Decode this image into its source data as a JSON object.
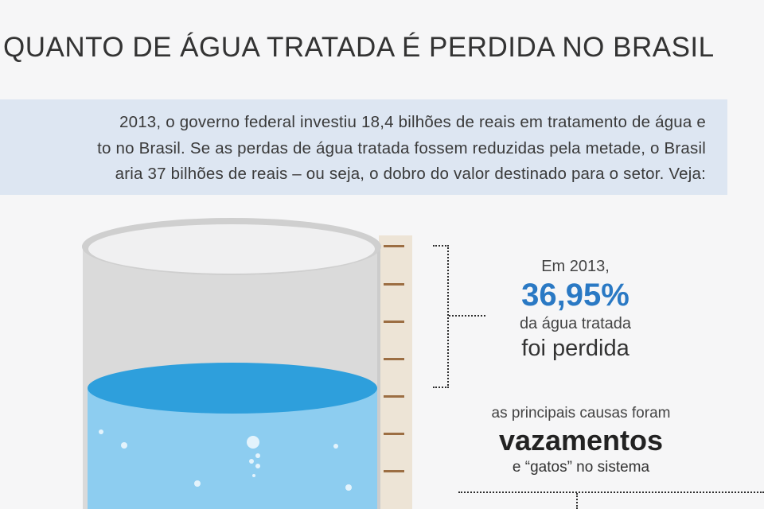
{
  "title": "QUANTO DE ÁGUA TRATADA É PERDIDA NO BRASIL",
  "intro": {
    "line1": "2013, o governo federal investiu 18,4 bilhões de reais em tratamento de água e",
    "line2": "to no Brasil. Se as perdas de água tratada fossem reduzidas pela metade, o Brasil",
    "line3": "aria 37 bilhões de reais – ou seja, o dobro do valor destinado para o setor. Veja:"
  },
  "stat": {
    "year": "Em 2013,",
    "percent": "36,95%",
    "line2": "da água tratada",
    "line3": "foi perdida"
  },
  "causes": {
    "intro": "as principais causas foram",
    "main": "vazamentos",
    "sub": "e “gatos” no sistema"
  },
  "colors": {
    "background": "#f6f6f7",
    "intro_band": "#dde6f2",
    "accent_blue": "#2a79c4",
    "water_surface": "#2e9fdc",
    "water_body": "#8dcdf0",
    "scale_tick": "#9c6e43"
  },
  "icons": {
    "tank": "water-tank-illustration",
    "scale": "measurement-scale"
  }
}
